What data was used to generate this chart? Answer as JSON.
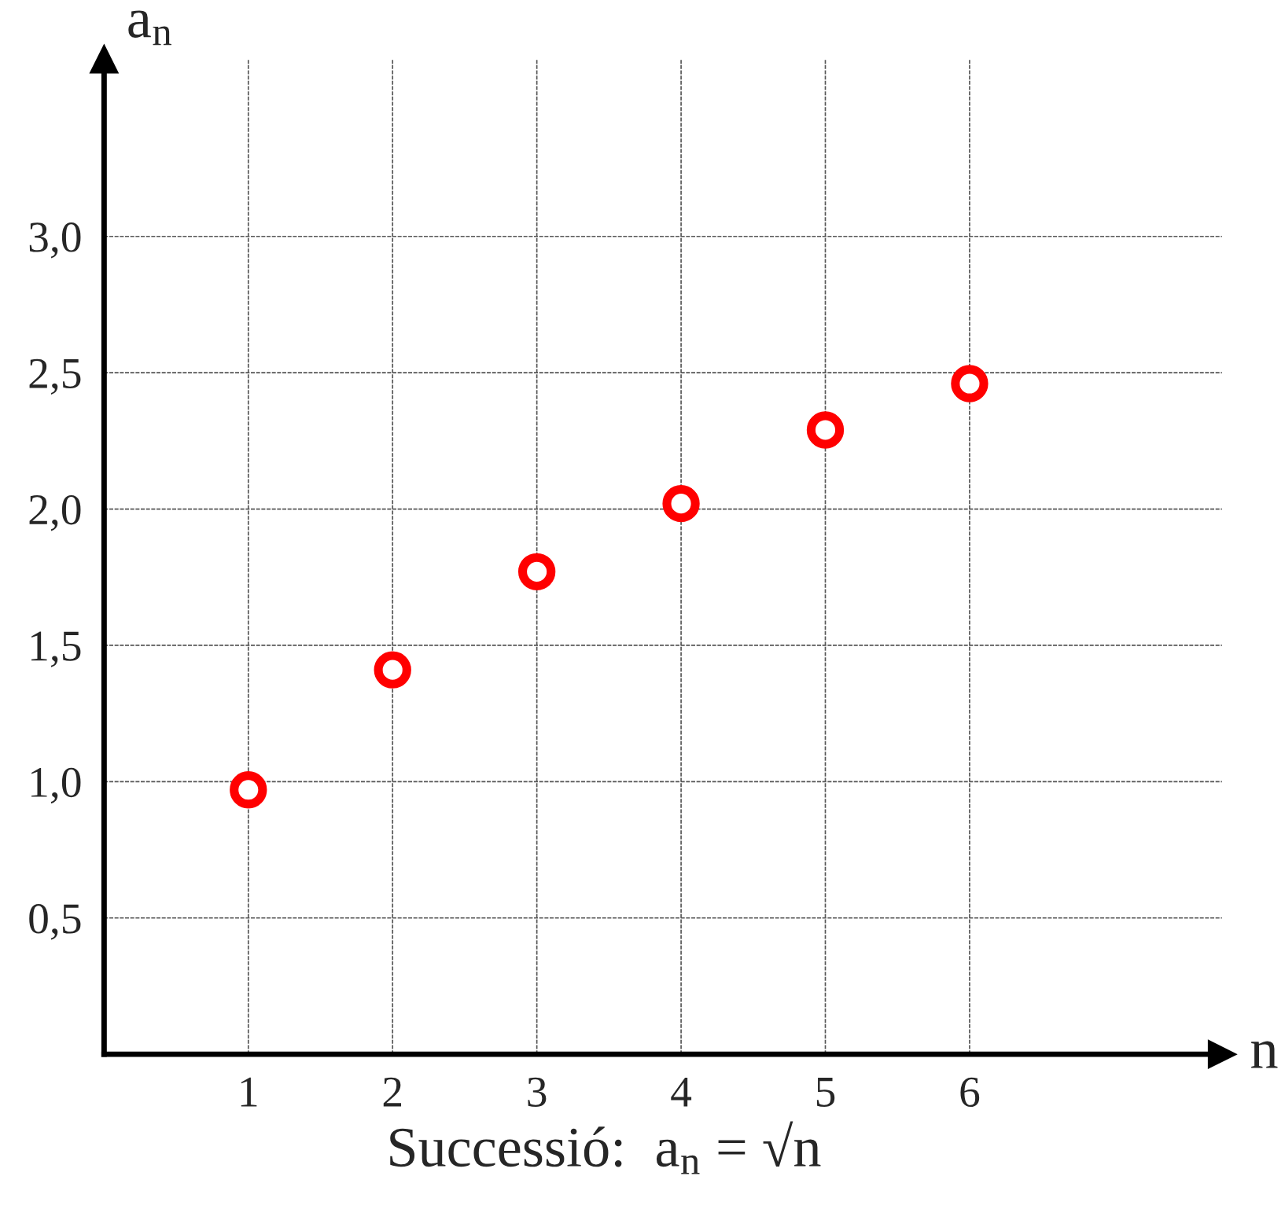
{
  "chart_data": {
    "type": "scatter",
    "title": "Successió:  a$_{n}$ = √n",
    "xlabel": "n",
    "ylabel": "a$_{n}$",
    "x": [
      1,
      2,
      3,
      4,
      5,
      6
    ],
    "series": [
      {
        "color": "#ff0000",
        "values": [
          0.97,
          1.41,
          1.77,
          2.02,
          2.29,
          2.46
        ]
      }
    ],
    "marker": "circle",
    "xlim": [
      0,
      7.75
    ],
    "ylim": [
      0,
      3.65
    ],
    "xticks": [
      1,
      2,
      3,
      4,
      5,
      6
    ],
    "yticks": [
      {
        "value": 0.5,
        "label": "0,5"
      },
      {
        "value": 1.0,
        "label": "1,0"
      },
      {
        "value": 1.5,
        "label": "1,5"
      },
      {
        "value": 2.0,
        "label": "2,0"
      },
      {
        "value": 2.5,
        "label": "2,5"
      },
      {
        "value": 3.0,
        "label": "3,0"
      }
    ],
    "grid": true,
    "legend": false
  }
}
